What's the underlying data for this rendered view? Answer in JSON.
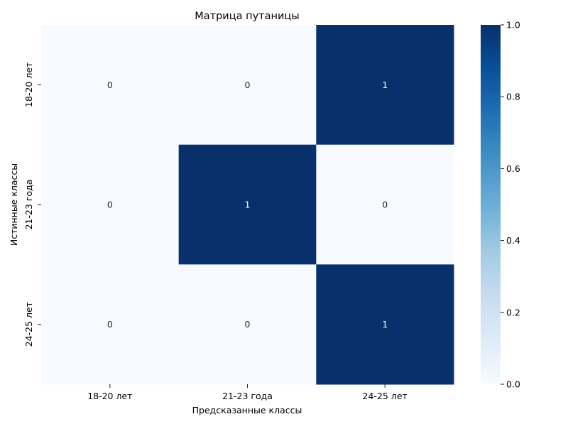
{
  "chart_data": {
    "type": "heatmap",
    "title": "Матрица путаницы",
    "xlabel": "Предсказанные классы",
    "ylabel": "Истинные классы",
    "x_categories": [
      "18-20 лет",
      "21-23 года",
      "24-25 лет"
    ],
    "y_categories": [
      "18-20 лет",
      "21-23 года",
      "24-25 лет"
    ],
    "values": [
      [
        0,
        0,
        1
      ],
      [
        0,
        1,
        0
      ],
      [
        0,
        0,
        1
      ]
    ],
    "value_range": [
      0,
      1
    ],
    "colorbar": {
      "ticks": [
        "0.0",
        "0.2",
        "0.4",
        "0.6",
        "0.8",
        "1.0"
      ],
      "tick_values": [
        0,
        0.2,
        0.4,
        0.6,
        0.8,
        1.0
      ]
    },
    "colors": {
      "low": "#f7fbff",
      "high": "#08306b",
      "annotation_on_low": "#262626",
      "annotation_on_high": "#ffffff"
    }
  }
}
